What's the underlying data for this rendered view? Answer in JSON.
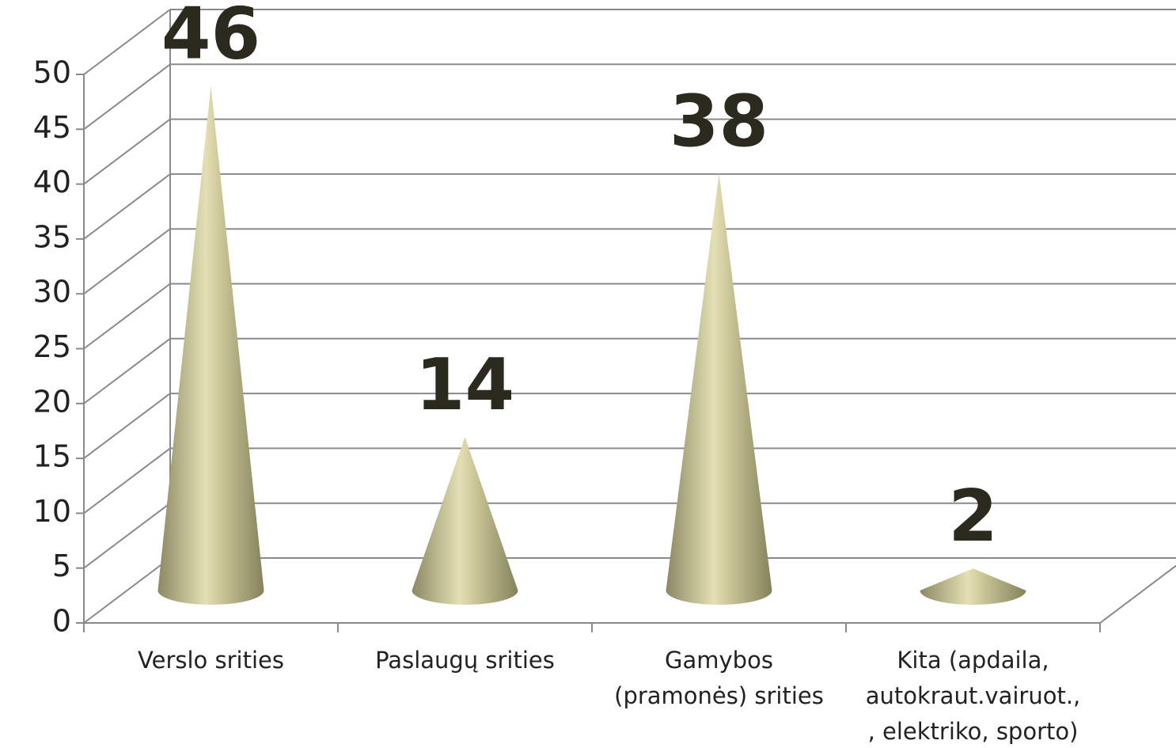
{
  "chart_data": {
    "type": "cone3d",
    "categories": [
      [
        "Verslo srities"
      ],
      [
        "Paslaugų srities"
      ],
      [
        "Gamybos",
        "(pramonės) srities"
      ],
      [
        "Kita (apdaila,",
        "autokraut.vairuot.,",
        ", elektriko, sporto)"
      ]
    ],
    "values": [
      46,
      14,
      38,
      2
    ],
    "color": "#b8b48a",
    "ylim": [
      0,
      50
    ],
    "yticks": [
      0,
      5,
      10,
      15,
      20,
      25,
      30,
      35,
      40,
      45,
      50
    ],
    "grid": true
  }
}
